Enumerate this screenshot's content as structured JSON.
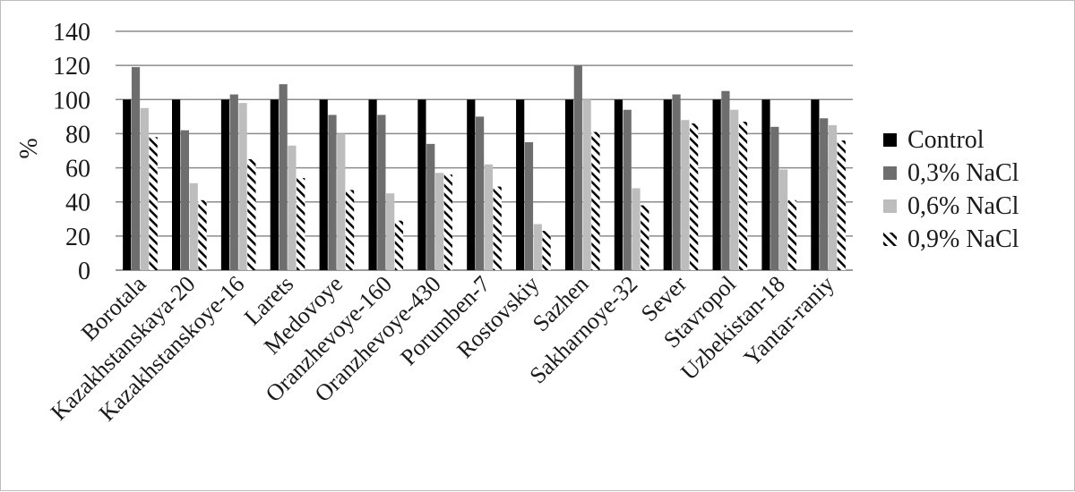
{
  "chart_data": {
    "type": "bar",
    "ylabel": "%",
    "xlabel": "",
    "ylim": [
      0,
      140
    ],
    "yticks": [
      0,
      20,
      40,
      60,
      80,
      100,
      120,
      140
    ],
    "grid": true,
    "legend_position": "right",
    "categories": [
      "Borotala",
      "Kazakhstanskaya-20",
      "Kazakhstanskoye-16",
      "Larets",
      "Medovoye",
      "Oranzhevoye-160",
      "Oranzhevoye-430",
      "Porumben-7",
      "Rostovskiy",
      "Sazhen",
      "Sakharnoye-32",
      "Sever",
      "Stavropol",
      "Uzbekistan-18",
      "Yantar-raniy"
    ],
    "series": [
      {
        "name": "Control",
        "color": "#000000",
        "pattern": "solid",
        "values": [
          100,
          100,
          100,
          100,
          100,
          100,
          100,
          100,
          100,
          100,
          100,
          100,
          100,
          100,
          100
        ]
      },
      {
        "name": "0,3% NaCl",
        "color": "#6e6e6e",
        "pattern": "solid",
        "values": [
          119,
          82,
          103,
          109,
          91,
          91,
          74,
          90,
          75,
          120,
          94,
          103,
          105,
          84,
          89
        ]
      },
      {
        "name": "0,6% NaCl",
        "color": "#bdbdbd",
        "pattern": "solid",
        "values": [
          95,
          51,
          98,
          73,
          80,
          45,
          57,
          62,
          27,
          100,
          48,
          88,
          94,
          59,
          85
        ]
      },
      {
        "name": "0,9% NaCl",
        "color": "#000000",
        "pattern": "hatch",
        "values": [
          78,
          41,
          65,
          54,
          47,
          29,
          56,
          49,
          23,
          81,
          38,
          86,
          87,
          41,
          76
        ]
      }
    ]
  }
}
